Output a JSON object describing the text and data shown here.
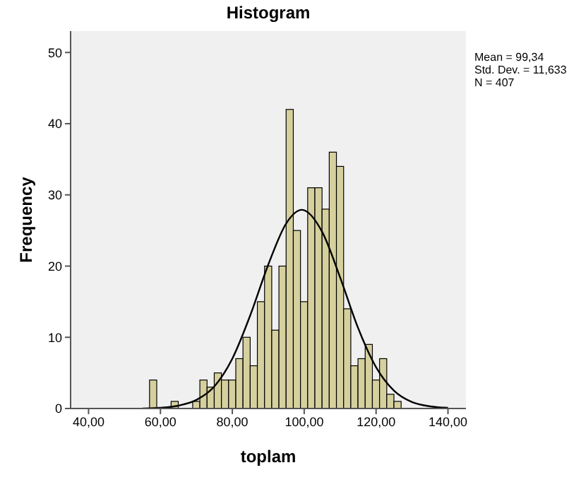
{
  "chart_data": {
    "type": "histogram",
    "title": "Histogram",
    "xlabel": "toplam",
    "ylabel": "Frequency",
    "bins": [
      57,
      59,
      61,
      63,
      65,
      67,
      69,
      71,
      73,
      75,
      77,
      79,
      81,
      83,
      85,
      87,
      89,
      91,
      93,
      95,
      97,
      99,
      101,
      103,
      105,
      107,
      109,
      111,
      113,
      115,
      117,
      119,
      121,
      123,
      125,
      127
    ],
    "series": [
      {
        "color": "#d6d09e",
        "values": [
          4,
          0,
          0,
          1,
          0,
          0,
          1,
          4,
          3,
          5,
          4,
          4,
          7,
          10,
          6,
          15,
          20,
          11,
          20,
          42,
          25,
          15,
          31,
          31,
          28,
          36,
          34,
          14,
          6,
          7,
          9,
          4,
          7,
          2,
          1
        ]
      },
      {
        "type": "line",
        "color": "#000000",
        "x": [
          55,
          60,
          65,
          70,
          75,
          80,
          85,
          90,
          95,
          99.34,
          105,
          110,
          115,
          120,
          125,
          130,
          135,
          140
        ],
        "values": [
          0,
          0.1,
          0.4,
          1.2,
          3.1,
          7,
          13.1,
          20.2,
          26,
          27.9,
          24.8,
          18.4,
          11.3,
          5.8,
          2.5,
          0.9,
          0.3,
          0.1
        ]
      }
    ],
    "xlim": [
      35,
      145
    ],
    "xticks": [
      {
        "value": 40,
        "label": "40,00"
      },
      {
        "value": 60,
        "label": "60,00"
      },
      {
        "value": 80,
        "label": "80,00"
      },
      {
        "value": 100,
        "label": "100,00"
      },
      {
        "value": 120,
        "label": "120,00"
      },
      {
        "value": 140,
        "label": "140,00"
      }
    ],
    "ylim": [
      0,
      53
    ],
    "yticks": [
      0,
      10,
      20,
      30,
      40,
      50
    ],
    "annotations": [
      "Mean = 99,34",
      "Std. Dev. = 11,633",
      "N = 407"
    ]
  }
}
